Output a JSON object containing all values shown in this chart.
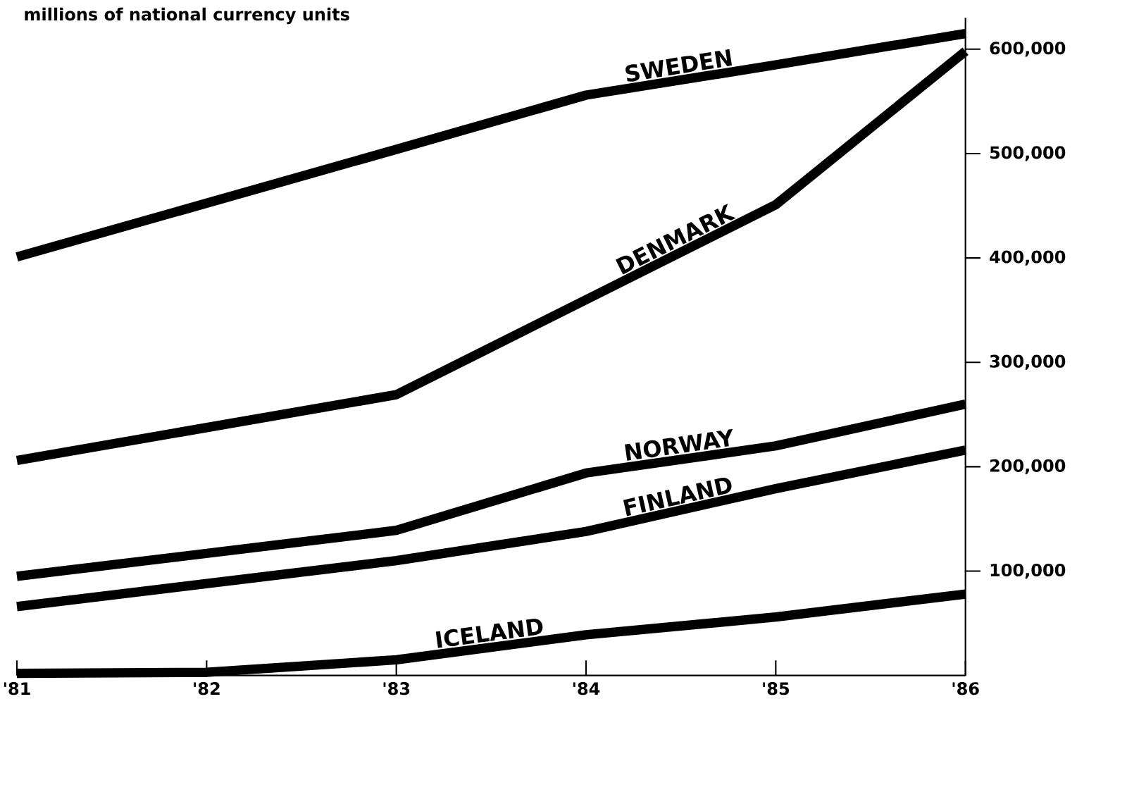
{
  "chart_data": {
    "type": "line",
    "subtitle": "millions of national currency units",
    "x": [
      1981,
      1982,
      1983,
      1984,
      1985,
      1986
    ],
    "series": [
      {
        "name": "SWEDEN",
        "color": "#000000",
        "values": [
          401000,
          null,
          504000,
          556000,
          585000,
          615000
        ]
      },
      {
        "name": "DENMARK",
        "color": "#000000",
        "values": [
          206000,
          null,
          269000,
          360000,
          451000,
          598000
        ]
      },
      {
        "name": "NORWAY",
        "color": "#000000",
        "values": [
          95000,
          null,
          139000,
          194000,
          220000,
          260000
        ]
      },
      {
        "name": "FINLAND",
        "color": "#000000",
        "values": [
          66000,
          null,
          110000,
          138000,
          179000,
          216000
        ]
      },
      {
        "name": "ICELAND",
        "color": "#000000",
        "values": [
          2000,
          3000,
          15000,
          39000,
          56000,
          78000
        ]
      }
    ],
    "xlim": [
      1981,
      1986
    ],
    "ylim": [
      0,
      630000
    ],
    "xticks": [
      {
        "value": 1981,
        "label": "'81"
      },
      {
        "value": 1982,
        "label": "'82"
      },
      {
        "value": 1983,
        "label": "'83"
      },
      {
        "value": 1984,
        "label": "'84"
      },
      {
        "value": 1985,
        "label": "'85"
      },
      {
        "value": 1986,
        "label": "'86"
      }
    ],
    "yticks": [
      {
        "value": 100000,
        "label": "100,000"
      },
      {
        "value": 200000,
        "label": "200,000"
      },
      {
        "value": 300000,
        "label": "300,000"
      },
      {
        "value": 400000,
        "label": "400,000"
      },
      {
        "value": 500000,
        "label": "500,000"
      },
      {
        "value": 600000,
        "label": "600,000"
      }
    ],
    "grid": false,
    "legend": false,
    "marker": "none",
    "line_style": "solid"
  }
}
